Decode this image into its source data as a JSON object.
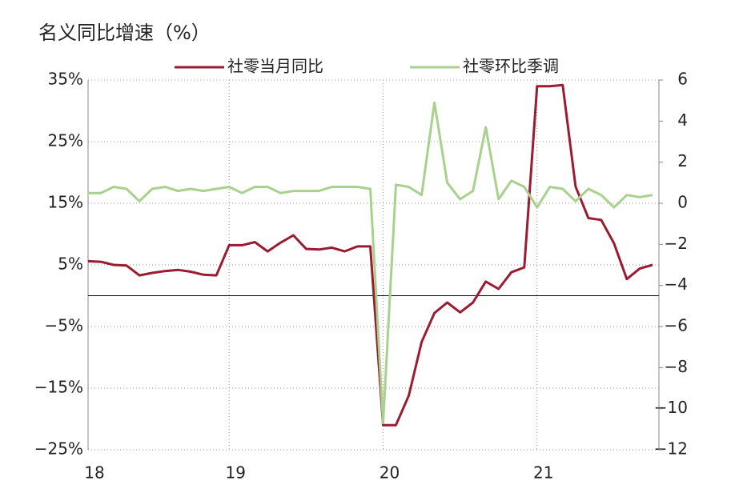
{
  "chart_data": {
    "type": "line",
    "title": "名义同比增速（%）",
    "categories": [
      "18",
      null,
      null,
      null,
      null,
      null,
      null,
      null,
      null,
      null,
      null,
      "19",
      null,
      null,
      null,
      null,
      null,
      null,
      null,
      null,
      null,
      null,
      null,
      "20",
      null,
      null,
      null,
      null,
      null,
      null,
      null,
      null,
      null,
      null,
      null,
      "21",
      null,
      null,
      null,
      null,
      null,
      null,
      null,
      null,
      null
    ],
    "series": [
      {
        "name": "社零当月同比",
        "color": "#9b1b30",
        "values": [
          5.6,
          5.5,
          5.0,
          4.9,
          3.3,
          3.7,
          4.0,
          4.2,
          3.9,
          3.4,
          3.3,
          8.2,
          8.2,
          8.7,
          7.2,
          8.6,
          9.8,
          7.6,
          7.5,
          7.8,
          7.2,
          8.0,
          8.0,
          -21.0,
          -21.0,
          -16.2,
          -7.5,
          -2.8,
          -1.1,
          -2.7,
          -1.1,
          2.3,
          1.1,
          3.8,
          4.6,
          34.0,
          34.0,
          34.2,
          17.7,
          12.6,
          12.3,
          8.5,
          2.7,
          4.4,
          5.0
        ]
      },
      {
        "name": "社零环比季调",
        "color": "#a9d18e",
        "axis": "y2",
        "values": [
          0.5,
          0.5,
          0.8,
          0.7,
          0.1,
          0.7,
          0.8,
          0.6,
          0.7,
          0.6,
          0.7,
          0.8,
          0.5,
          0.8,
          0.8,
          0.5,
          0.6,
          0.6,
          0.6,
          0.8,
          0.8,
          0.8,
          0.7,
          -10.7,
          0.9,
          0.8,
          0.4,
          4.9,
          1.0,
          0.2,
          0.6,
          3.7,
          0.2,
          1.1,
          0.8,
          -0.2,
          0.8,
          0.7,
          0.1,
          0.7,
          0.4,
          -0.2,
          0.4,
          0.3,
          0.4
        ]
      }
    ],
    "ylim": [
      -25,
      35
    ],
    "yticks": [
      {
        "value": -25,
        "label": "−25%"
      },
      {
        "value": -15,
        "label": "−15%"
      },
      {
        "value": -5,
        "label": "−5%"
      },
      {
        "value": 5,
        "label": "5%"
      },
      {
        "value": 15,
        "label": "15%"
      },
      {
        "value": 25,
        "label": "25%"
      },
      {
        "value": 35,
        "label": "35%"
      }
    ],
    "y2lim": [
      -12,
      6
    ],
    "y2ticks": [
      {
        "value": -12,
        "label": "−12"
      },
      {
        "value": -10,
        "label": "−10"
      },
      {
        "value": -8,
        "label": "−8"
      },
      {
        "value": -6,
        "label": "−6"
      },
      {
        "value": -4,
        "label": "−4"
      },
      {
        "value": -2,
        "label": "−2"
      },
      0,
      2,
      4,
      6
    ],
    "grid": true,
    "legend": "top"
  }
}
